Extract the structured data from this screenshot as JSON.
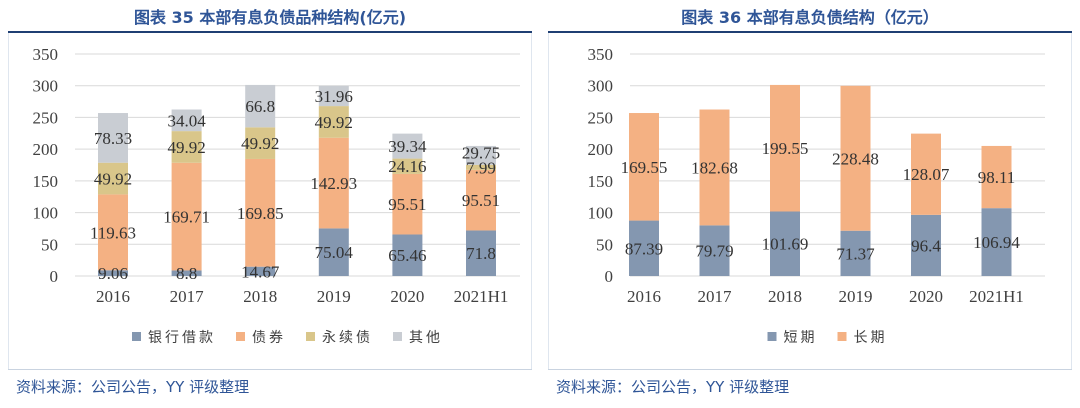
{
  "chart_data": [
    {
      "type": "bar",
      "stacked": true,
      "title": "图表 35 本部有息负债品种结构(亿元)",
      "categories": [
        "2016",
        "2017",
        "2018",
        "2019",
        "2020",
        "2021H1"
      ],
      "ylim": [
        0,
        350
      ],
      "yticks": [
        0,
        50,
        100,
        150,
        200,
        250,
        300,
        350
      ],
      "grid": true,
      "legend": "bottom",
      "series": [
        {
          "name": "银行借款",
          "color": "#8497b0",
          "values": [
            9.06,
            8.8,
            14.67,
            75.04,
            65.46,
            71.8
          ]
        },
        {
          "name": "债券",
          "color": "#f4b183",
          "values": [
            119.63,
            169.71,
            169.85,
            142.93,
            95.51,
            95.51
          ]
        },
        {
          "name": "永续债",
          "color": "#d9c68a",
          "values": [
            49.92,
            49.92,
            49.92,
            49.92,
            24.16,
            7.99
          ]
        },
        {
          "name": "其他",
          "color": "#c9cdd3",
          "values": [
            78.33,
            34.04,
            66.8,
            31.96,
            39.34,
            29.75
          ]
        }
      ]
    },
    {
      "type": "bar",
      "stacked": true,
      "title": "图表 36 本部有息负债结构（亿元）",
      "categories": [
        "2016",
        "2017",
        "2018",
        "2019",
        "2020",
        "2021H1"
      ],
      "ylim": [
        0,
        350
      ],
      "yticks": [
        0,
        50,
        100,
        150,
        200,
        250,
        300,
        350
      ],
      "grid": true,
      "legend": "bottom",
      "series": [
        {
          "name": "短期",
          "color": "#8497b0",
          "values": [
            87.39,
            79.79,
            101.69,
            71.37,
            96.4,
            106.94
          ]
        },
        {
          "name": "长期",
          "color": "#f4b183",
          "values": [
            169.55,
            182.68,
            199.55,
            228.48,
            128.07,
            98.11
          ]
        }
      ]
    }
  ],
  "footers": [
    "资料来源：公司公告，YY 评级整理",
    "资料来源：公司公告，YY 评级整理"
  ]
}
